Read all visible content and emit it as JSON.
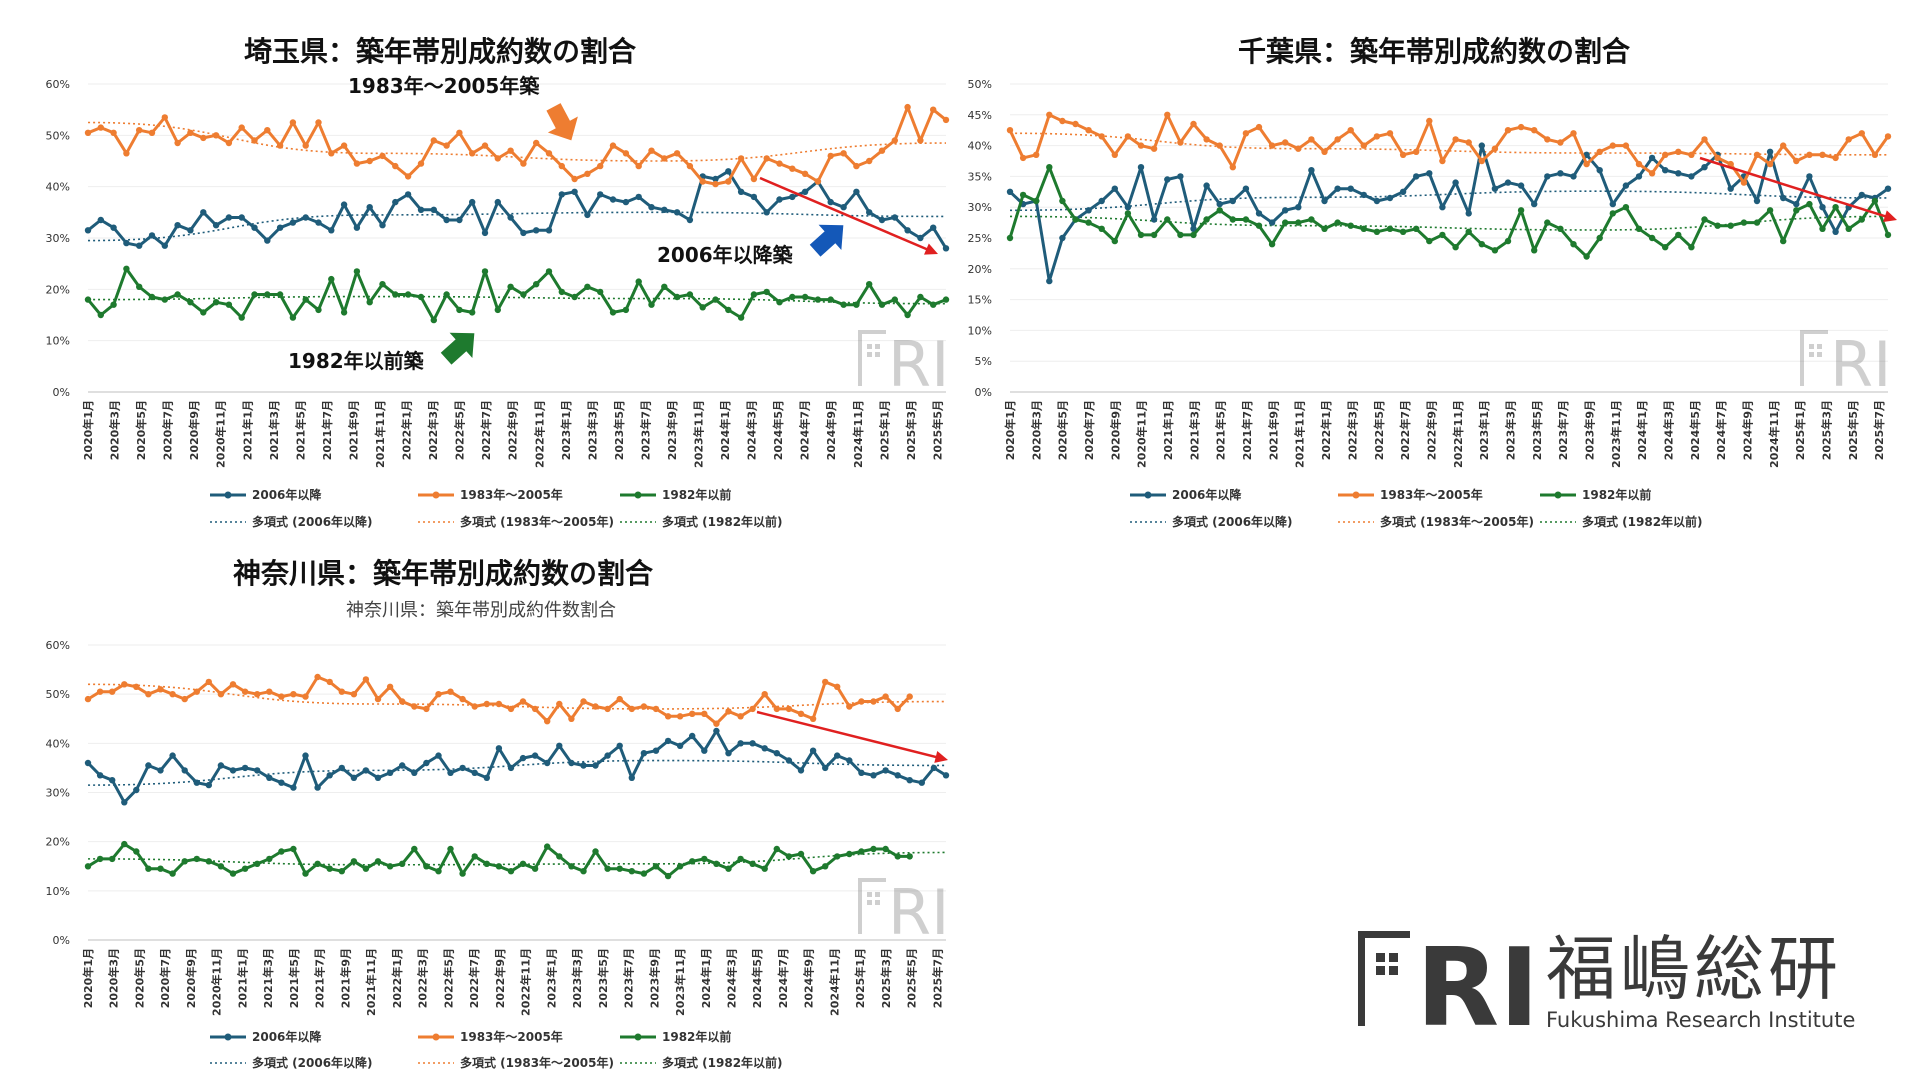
{
  "colors": {
    "new": "#1F5C7A",
    "mid": "#EE7D31",
    "old": "#1E7A2E",
    "arrow_red": "#E02020"
  },
  "legend": {
    "s_new": "2006年以降",
    "s_mid": "1983年～2005年",
    "s_old": "1982年以前",
    "t_new": "多項式 (2006年以降)",
    "t_mid": "多項式 (1983年～2005年)",
    "t_old": "多項式 (1982年以前)"
  },
  "watermark": "FRI",
  "logo": {
    "mark": "FRI",
    "kanji": "福嶋総研",
    "english": "Fukushima Research Institute"
  },
  "chart_data": [
    {
      "type": "line",
      "title": "埼玉県：築年帯別成約数の割合",
      "subtitle": "",
      "y_ticks": [
        "0%",
        "10%",
        "20%",
        "30%",
        "40%",
        "50%",
        "60%"
      ],
      "ylim": [
        0,
        60
      ],
      "x_ticks": [
        "2020年1月",
        "2020年3月",
        "2020年5月",
        "2020年7月",
        "2020年9月",
        "2020年11月",
        "2021年1月",
        "2021年3月",
        "2021年5月",
        "2021年7月",
        "2021年9月",
        "2021年11月",
        "2022年1月",
        "2022年3月",
        "2022年5月",
        "2022年7月",
        "2022年9月",
        "2022年11月",
        "2023年1月",
        "2023年3月",
        "2023年5月",
        "2023年7月",
        "2023年9月",
        "2023年11月",
        "2024年1月",
        "2024年3月",
        "2024年5月",
        "2024年7月",
        "2024年9月",
        "2024年11月",
        "2025年1月",
        "2025年3月",
        "2025年5月"
      ],
      "annotations": {
        "a_mid": "1983年～2005年築",
        "a_new": "2006年以降築",
        "a_old": "1982年以前築"
      },
      "series": [
        {
          "name": "2006年以降",
          "values": [
            31.5,
            33.5,
            32,
            29,
            28.5,
            30.5,
            28.5,
            32.5,
            31.5,
            35,
            32.5,
            34,
            34,
            32,
            29.5,
            32,
            33,
            34,
            33,
            31.5,
            36.5,
            32,
            36,
            32.5,
            37,
            38.5,
            35.5,
            35.5,
            33.5,
            33.5,
            37,
            31,
            37,
            34,
            31,
            31.5,
            31.5,
            38.5,
            39,
            34.5,
            38.5,
            37.5,
            37,
            38,
            36,
            35.5,
            35,
            33.5,
            42,
            41.5,
            43,
            39,
            38,
            35,
            37.5,
            38,
            39,
            41,
            37,
            36,
            39,
            35,
            33.5,
            34,
            31.5,
            30,
            32,
            28
          ]
        },
        {
          "name": "1983年～2005年",
          "values": [
            50.5,
            51.5,
            50.5,
            46.5,
            51,
            50.5,
            53.5,
            48.5,
            50.5,
            49.5,
            50,
            48.5,
            51.5,
            49,
            51,
            48,
            52.5,
            48,
            52.5,
            46.5,
            48,
            44.5,
            45,
            46,
            44,
            42,
            44.5,
            49,
            48,
            50.5,
            46.5,
            48,
            45.5,
            47,
            44.5,
            48.5,
            46.5,
            44,
            41.5,
            42.5,
            44,
            48,
            46.5,
            44,
            47,
            45.5,
            46.5,
            44,
            41,
            40.5,
            41,
            45.5,
            41.5,
            45.5,
            44.5,
            43.5,
            42.5,
            41,
            46,
            46.5,
            44,
            45,
            47,
            49,
            55.5,
            49,
            55,
            53
          ]
        },
        {
          "name": "1982年以前",
          "values": [
            18,
            15,
            17,
            24,
            20.5,
            18.5,
            18,
            19,
            17.5,
            15.5,
            17.5,
            17,
            14.5,
            19,
            19,
            19,
            14.5,
            18,
            16,
            22,
            15.5,
            23.5,
            17.5,
            21,
            19,
            19,
            18.5,
            14,
            19,
            16,
            15.5,
            23.5,
            16,
            20.5,
            19,
            21,
            23.5,
            19.5,
            18.5,
            20.5,
            19.5,
            15.5,
            16,
            21.5,
            17,
            20.5,
            18.5,
            19,
            16.5,
            18,
            16,
            14.5,
            19,
            19.5,
            17.5,
            18.5,
            18.5,
            18,
            18,
            17,
            17,
            21,
            17,
            18,
            15,
            18.5,
            17,
            18
          ]
        }
      ],
      "trends": [
        {
          "name": "多項式 (2006年以降)",
          "values": [
            29.5,
            34.5,
            35,
            34.2
          ]
        },
        {
          "name": "多項式 (1983年～2005年)",
          "values": [
            52.5,
            46.5,
            45,
            48.5
          ]
        },
        {
          "name": "多項式 (1982年以前)",
          "values": [
            18,
            18.6,
            18.2,
            17.2
          ]
        }
      ]
    },
    {
      "type": "line",
      "title": "千葉県：築年帯別成約数の割合",
      "subtitle": "",
      "y_ticks": [
        "0%",
        "5%",
        "10%",
        "15%",
        "20%",
        "25%",
        "30%",
        "35%",
        "40%",
        "45%",
        "50%"
      ],
      "ylim": [
        0,
        50
      ],
      "x_ticks": [
        "2020年1月",
        "2020年3月",
        "2020年5月",
        "2020年7月",
        "2020年9月",
        "2020年11月",
        "2021年1月",
        "2021年3月",
        "2021年5月",
        "2021年7月",
        "2021年9月",
        "2021年11月",
        "2022年1月",
        "2022年3月",
        "2022年5月",
        "2022年7月",
        "2022年9月",
        "2022年11月",
        "2023年1月",
        "2023年3月",
        "2023年5月",
        "2023年7月",
        "2023年9月",
        "2023年11月",
        "2024年1月",
        "2024年3月",
        "2024年5月",
        "2024年7月",
        "2024年9月",
        "2024年11月",
        "2025年1月",
        "2025年3月",
        "2025年5月",
        "2025年7月"
      ],
      "annotations": {},
      "series": [
        {
          "name": "2006年以降",
          "values": [
            32.5,
            30.5,
            31,
            18,
            25,
            28,
            29.5,
            31,
            33,
            30,
            36.5,
            28,
            34.5,
            35,
            26.5,
            33.5,
            30.5,
            31,
            33,
            29,
            27.5,
            29.5,
            30,
            36,
            31,
            33,
            33,
            32,
            31,
            31.5,
            32.5,
            35,
            35.5,
            30,
            34,
            29,
            40,
            33,
            34,
            33.5,
            30.5,
            35,
            35.5,
            35,
            38.5,
            36,
            30.5,
            33.5,
            35,
            38,
            36,
            35.5,
            35,
            36.5,
            38.5,
            33,
            35,
            31,
            39,
            31.5,
            30.5,
            35,
            30,
            26,
            30,
            32,
            31.5,
            33
          ]
        },
        {
          "name": "1983年～2005年",
          "values": [
            42.5,
            38,
            38.5,
            45,
            44,
            43.5,
            42.5,
            41.5,
            38.5,
            41.5,
            40,
            39.5,
            45,
            40.5,
            43.5,
            41,
            40,
            36.5,
            42,
            43,
            40,
            40.5,
            39.5,
            41,
            39,
            41,
            42.5,
            40,
            41.5,
            42,
            38.5,
            39,
            44,
            37.5,
            41,
            40.5,
            37.5,
            39.5,
            42.5,
            43,
            42.5,
            41,
            40.5,
            42,
            37,
            39,
            40,
            40,
            37,
            35.5,
            38.5,
            39,
            38.5,
            41,
            38,
            37,
            34,
            38.5,
            37,
            40,
            37.5,
            38.5,
            38.5,
            38,
            41,
            42,
            38.5,
            41.5
          ]
        },
        {
          "name": "1982年以前",
          "values": [
            25,
            32,
            31,
            36.5,
            31,
            28,
            27.5,
            26.5,
            24.5,
            29,
            25.5,
            25.5,
            28,
            25.5,
            25.5,
            28,
            29.5,
            28,
            28,
            27,
            24,
            27.5,
            27.5,
            28,
            26.5,
            27.5,
            27,
            26.5,
            26,
            26.5,
            26,
            26.5,
            24.5,
            25.5,
            23.5,
            26,
            24,
            23,
            24.5,
            29.5,
            23,
            27.5,
            26.5,
            24,
            22,
            25,
            29,
            30,
            26.5,
            25,
            23.5,
            25.5,
            23.5,
            28,
            27,
            27,
            27.5,
            27.5,
            29.5,
            24.5,
            29.5,
            30.5,
            26.5,
            30,
            26.5,
            28,
            31,
            25.5
          ]
        }
      ],
      "trends": [
        {
          "name": "多項式 (2006年以降)",
          "values": [
            29.5,
            31.6,
            32.6,
            31.5
          ]
        },
        {
          "name": "多項式 (1983年～2005年)",
          "values": [
            42,
            39.5,
            38.8,
            38.5
          ]
        },
        {
          "name": "多項式 (1982年以前)",
          "values": [
            28.5,
            27,
            26.3,
            28.5
          ]
        }
      ]
    },
    {
      "type": "line",
      "title": "神奈川県：築年帯別成約数の割合",
      "subtitle": "神奈川県：築年帯別成約件数割合",
      "y_ticks": [
        "0%",
        "10%",
        "20%",
        "30%",
        "40%",
        "50%",
        "60%"
      ],
      "ylim": [
        0,
        60
      ],
      "x_ticks": [
        "2020年1月",
        "2020年3月",
        "2020年5月",
        "2020年7月",
        "2020年9月",
        "2020年11月",
        "2021年1月",
        "2021年3月",
        "2021年5月",
        "2021年7月",
        "2021年9月",
        "2021年11月",
        "2022年1月",
        "2022年3月",
        "2022年5月",
        "2022年7月",
        "2022年9月",
        "2022年11月",
        "2023年1月",
        "2023年3月",
        "2023年5月",
        "2023年7月",
        "2023年9月",
        "2023年11月",
        "2024年1月",
        "2024年3月",
        "2024年5月",
        "2024年7月",
        "2024年9月",
        "2024年11月",
        "2025年1月",
        "2025年3月",
        "2025年5月",
        "2025年7月"
      ],
      "annotations": {},
      "series": [
        {
          "name": "2006年以降",
          "values": [
            36,
            33.5,
            32.5,
            28,
            30.5,
            35.5,
            34.5,
            37.5,
            34.5,
            32,
            31.5,
            35.5,
            34.5,
            35,
            34.5,
            33,
            32,
            31,
            37.5,
            31,
            33.5,
            35,
            33,
            34.5,
            33,
            34,
            35.5,
            34,
            36,
            37.5,
            34,
            35,
            34,
            33,
            39,
            35,
            37,
            37.5,
            36,
            39.5,
            36,
            35.5,
            35.5,
            37.5,
            39.5,
            33,
            38,
            38.5,
            40.5,
            39.5,
            41.5,
            38.5,
            42.5,
            38,
            40,
            40,
            39,
            38,
            36.5,
            34.5,
            38.5,
            35,
            37.5,
            36.5,
            34,
            33.5,
            34.5,
            33.5,
            32.5,
            32,
            35,
            33.5
          ]
        },
        {
          "name": "1983年～2005年",
          "values": [
            49,
            50.5,
            50.5,
            52,
            51.5,
            50,
            51,
            50,
            49,
            50.5,
            52.5,
            50,
            52,
            50.5,
            50,
            50.5,
            49.5,
            50,
            49.5,
            53.5,
            52.5,
            50.5,
            50,
            53,
            49,
            51.5,
            48.5,
            47.5,
            47,
            50,
            50.5,
            49,
            47.5,
            48,
            48,
            47,
            48.5,
            47,
            44.5,
            48,
            45,
            48.5,
            47.5,
            47,
            49,
            47,
            47.5,
            47,
            45.5,
            45.5,
            46,
            46,
            44,
            46.5,
            45.5,
            47,
            50,
            47,
            47,
            46,
            45,
            52.5,
            51.5,
            47.5,
            48.5,
            48.5,
            49.5,
            47,
            49.5
          ]
        },
        {
          "name": "1982年以前",
          "values": [
            15,
            16.5,
            16.5,
            19.5,
            18,
            14.5,
            14.5,
            13.5,
            16,
            16.5,
            16,
            15,
            13.5,
            14.5,
            15.5,
            16.5,
            18,
            18.5,
            13.5,
            15.5,
            14.5,
            14,
            16,
            14.5,
            16,
            15,
            15.5,
            18.5,
            15,
            14,
            18.5,
            13.5,
            17,
            15.5,
            15,
            14,
            15.5,
            14.5,
            19,
            17,
            15,
            14,
            18,
            14.5,
            14.5,
            14,
            13.5,
            15,
            13,
            15,
            16,
            16.5,
            15.5,
            14.5,
            16.5,
            15.5,
            14.5,
            18.5,
            17,
            17.5,
            14,
            15,
            17,
            17.5,
            18,
            18.5,
            18.5,
            17,
            17
          ]
        }
      ],
      "trends": [
        {
          "name": "多項式 (2006年以降)",
          "values": [
            31.5,
            34.5,
            36.5,
            35.5
          ]
        },
        {
          "name": "多項式 (1983年～2005年)",
          "values": [
            52,
            48,
            47,
            48.5
          ]
        },
        {
          "name": "多項式 (1982年以前)",
          "values": [
            16.5,
            15.3,
            15.5,
            17.8
          ]
        }
      ]
    }
  ]
}
